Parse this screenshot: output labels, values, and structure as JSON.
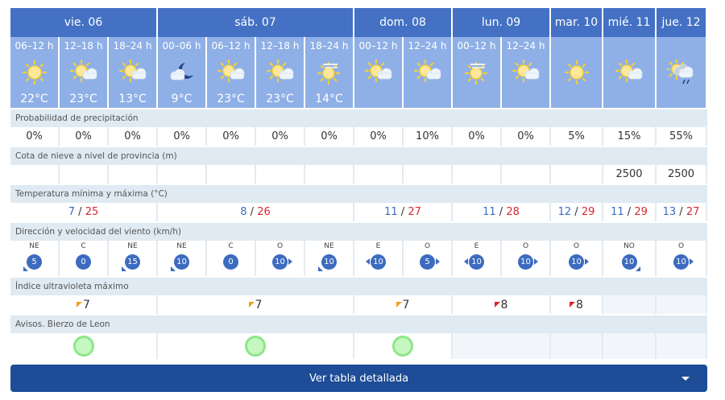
{
  "days": [
    {
      "label": "vie. 06",
      "span": 3,
      "temp_min": "7",
      "temp_max": "25",
      "uv": "7",
      "uv_color": "#f0a020",
      "aviso": true
    },
    {
      "label": "sáb. 07",
      "span": 4,
      "temp_min": "8",
      "temp_max": "26",
      "uv": "7",
      "uv_color": "#f0a020",
      "aviso": true
    },
    {
      "label": "dom. 08",
      "span": 2,
      "temp_min": "11",
      "temp_max": "27",
      "uv": "7",
      "uv_color": "#f0a020",
      "aviso": true
    },
    {
      "label": "lun. 09",
      "span": 2,
      "temp_min": "11",
      "temp_max": "28",
      "uv": "8",
      "uv_color": "#d9262a",
      "aviso": false
    },
    {
      "label": "mar. 10",
      "span": 1,
      "temp_min": "12",
      "temp_max": "29",
      "uv": "8",
      "uv_color": "#d9262a",
      "aviso": false
    },
    {
      "label": "mié. 11",
      "span": 1,
      "temp_min": "11",
      "temp_max": "29",
      "uv": "",
      "aviso": false
    },
    {
      "label": "jue. 12",
      "span": 1,
      "temp_min": "13",
      "temp_max": "27",
      "uv": "",
      "aviso": false
    }
  ],
  "periods": [
    {
      "label": "06–12 h",
      "icon": "sun-icon",
      "temp": "22°C",
      "precip": "0%",
      "snow": "",
      "wind_dir": "NE",
      "wind_speed": "5",
      "arrow": "sw"
    },
    {
      "label": "12–18 h",
      "icon": "sun-cloud-icon",
      "temp": "23°C",
      "precip": "0%",
      "snow": "",
      "wind_dir": "C",
      "wind_speed": "0",
      "arrow": ""
    },
    {
      "label": "18–24 h",
      "icon": "sun-cloud-icon",
      "temp": "13°C",
      "precip": "0%",
      "snow": "",
      "wind_dir": "NE",
      "wind_speed": "15",
      "arrow": "sw"
    },
    {
      "label": "00–06 h",
      "icon": "moon-cloud-icon",
      "temp": "9°C",
      "precip": "0%",
      "snow": "",
      "wind_dir": "NE",
      "wind_speed": "10",
      "arrow": "sw"
    },
    {
      "label": "06–12 h",
      "icon": "sun-cloud-icon",
      "temp": "23°C",
      "precip": "0%",
      "snow": "",
      "wind_dir": "C",
      "wind_speed": "0",
      "arrow": ""
    },
    {
      "label": "12–18 h",
      "icon": "sun-cloud-icon",
      "temp": "23°C",
      "precip": "0%",
      "snow": "",
      "wind_dir": "O",
      "wind_speed": "10",
      "arrow": "e"
    },
    {
      "label": "18–24 h",
      "icon": "sun-haze-icon",
      "temp": "14°C",
      "precip": "0%",
      "snow": "",
      "wind_dir": "NE",
      "wind_speed": "10",
      "arrow": "sw"
    },
    {
      "label": "00–12 h",
      "icon": "sun-cloud-icon",
      "temp": "",
      "precip": "0%",
      "snow": "",
      "wind_dir": "E",
      "wind_speed": "10",
      "arrow": "w"
    },
    {
      "label": "12–24 h",
      "icon": "sun-cloud-icon",
      "temp": "",
      "precip": "10%",
      "snow": "",
      "wind_dir": "O",
      "wind_speed": "5",
      "arrow": "e"
    },
    {
      "label": "00–12 h",
      "icon": "sun-haze-icon",
      "temp": "",
      "precip": "0%",
      "snow": "",
      "wind_dir": "E",
      "wind_speed": "10",
      "arrow": "w"
    },
    {
      "label": "12–24 h",
      "icon": "sun-cloud-icon",
      "temp": "",
      "precip": "0%",
      "snow": "",
      "wind_dir": "O",
      "wind_speed": "10",
      "arrow": "e"
    },
    {
      "label": "",
      "icon": "sun-icon",
      "temp": "",
      "precip": "5%",
      "snow": "",
      "wind_dir": "O",
      "wind_speed": "10",
      "arrow": "e"
    },
    {
      "label": "",
      "icon": "sun-cloud-icon",
      "temp": "",
      "precip": "15%",
      "snow": "2500",
      "wind_dir": "NO",
      "wind_speed": "10",
      "arrow": "se"
    },
    {
      "label": "",
      "icon": "sun-cloud-rain-icon",
      "temp": "",
      "precip": "55%",
      "snow": "2500",
      "wind_dir": "O",
      "wind_speed": "10",
      "arrow": "e"
    }
  ],
  "labels": {
    "precip": "Probabilidad de precipitación",
    "snow": "Cota de nieve a nivel de provincia (m)",
    "temp": "Temperatura mínima y máxima (°C)",
    "wind": "Dirección y velocidad del viento (km/h)",
    "uv": "Índice ultravioleta máximo",
    "avisos": "Avisos. Bierzo de Leon"
  },
  "button": {
    "label": "Ver tabla detallada"
  },
  "colors": {
    "header": "#4471c4",
    "period": "#8fb0e6",
    "button": "#1e4c96",
    "min": "#3c6bc0",
    "max": "#d9262a"
  }
}
